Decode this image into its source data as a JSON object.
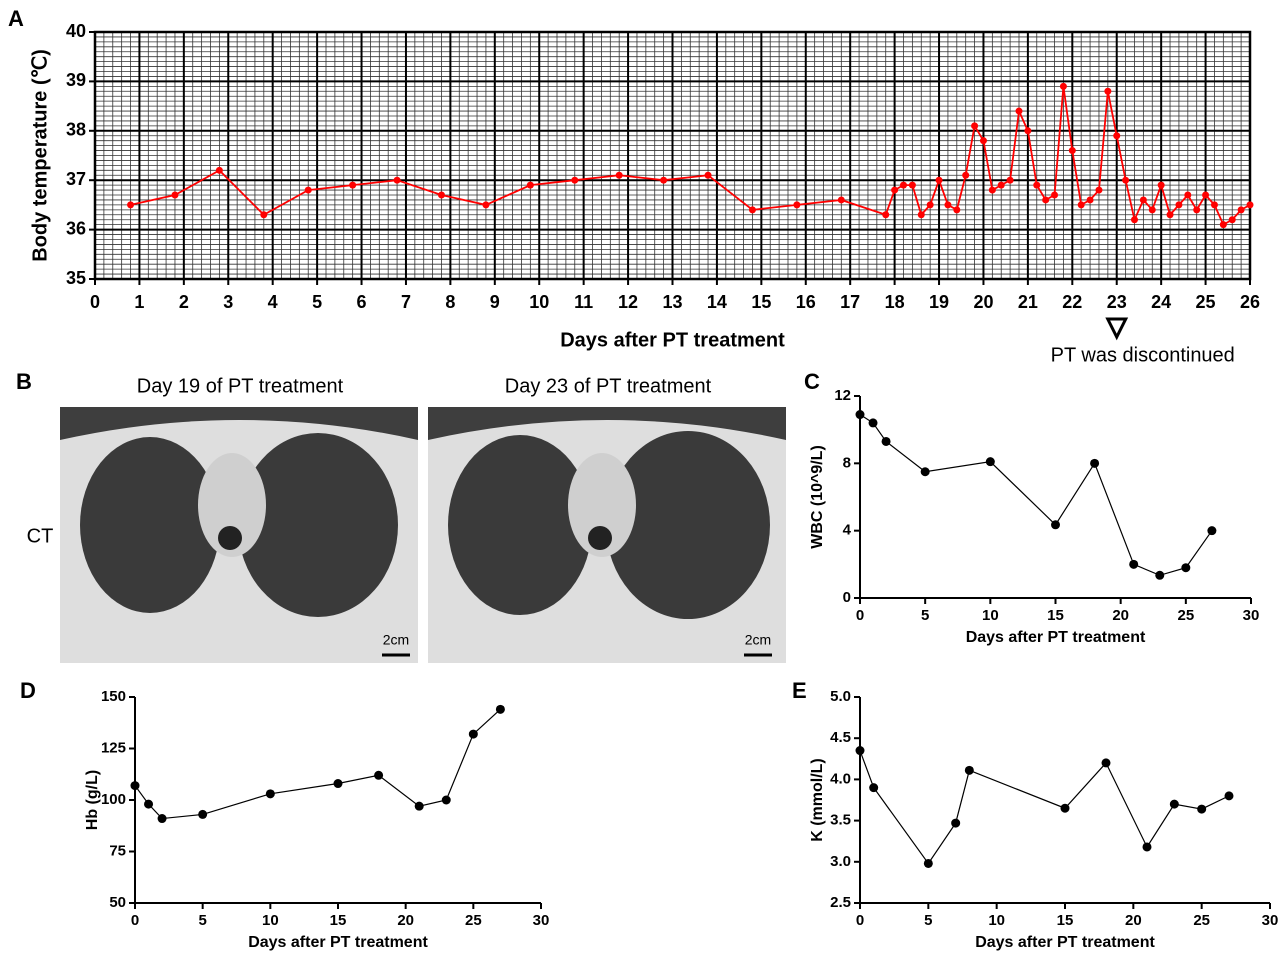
{
  "chart_data": [
    {
      "type": "line",
      "panel": "A",
      "ylabel": "Body temperature (℃)",
      "xlabel": "Days after PT treatment",
      "color": "#ff0000",
      "grid": true,
      "xlim": [
        0,
        26
      ],
      "xticks": [
        0,
        1,
        2,
        3,
        4,
        5,
        6,
        7,
        8,
        9,
        10,
        11,
        12,
        13,
        14,
        15,
        16,
        17,
        18,
        19,
        20,
        21,
        22,
        23,
        24,
        25,
        26
      ],
      "ylim": [
        35,
        40
      ],
      "yticks": [
        35,
        36,
        37,
        38,
        39,
        40
      ],
      "x": [
        0.8,
        1.8,
        2.8,
        3.8,
        4.8,
        5.8,
        6.8,
        7.8,
        8.8,
        9.8,
        10.8,
        11.8,
        12.8,
        13.8,
        14.8,
        15.8,
        16.8,
        17.8,
        18.0,
        18.2,
        18.4,
        18.6,
        18.8,
        19.0,
        19.2,
        19.4,
        19.6,
        19.8,
        20.0,
        20.2,
        20.4,
        20.6,
        20.8,
        21.0,
        21.2,
        21.4,
        21.6,
        21.8,
        22.0,
        22.2,
        22.4,
        22.6,
        22.8,
        23.0,
        23.2,
        23.4,
        23.6,
        23.8,
        24.0,
        24.2,
        24.4,
        24.6,
        24.8,
        25.0,
        25.2,
        25.4,
        25.6,
        25.8,
        26.0
      ],
      "values": [
        36.5,
        36.7,
        37.2,
        36.3,
        36.8,
        36.9,
        37.0,
        36.7,
        36.5,
        36.9,
        37.0,
        37.1,
        37.0,
        37.1,
        36.4,
        36.5,
        36.6,
        36.3,
        36.8,
        36.9,
        36.9,
        36.3,
        36.5,
        37.0,
        36.5,
        36.4,
        37.1,
        38.1,
        37.8,
        36.8,
        36.9,
        37.0,
        38.4,
        38.0,
        36.9,
        36.6,
        36.7,
        38.9,
        37.6,
        36.5,
        36.6,
        36.8,
        38.8,
        37.9,
        37.0,
        36.2,
        36.6,
        36.4,
        36.9,
        36.3,
        36.5,
        36.7,
        36.4,
        36.7,
        36.5,
        36.1,
        36.2,
        36.4,
        36.5
      ],
      "annotation": {
        "text": "PT was discontinued",
        "x": 23
      }
    },
    {
      "type": "line",
      "panel": "C",
      "ylabel": "WBC (10^9/L)",
      "xlabel": "Days after PT treatment",
      "color": "#000000",
      "grid": false,
      "xlim": [
        0,
        30
      ],
      "xticks": [
        0,
        5,
        10,
        15,
        20,
        25,
        30
      ],
      "ylim": [
        0,
        12
      ],
      "yticks": [
        0,
        4,
        8,
        12
      ],
      "x": [
        0,
        1,
        2,
        5,
        10,
        15,
        18,
        21,
        23,
        25,
        27
      ],
      "values": [
        10.9,
        10.4,
        9.3,
        7.5,
        8.1,
        4.35,
        8.0,
        2.0,
        1.35,
        1.8,
        4.0
      ]
    },
    {
      "type": "line",
      "panel": "D",
      "ylabel": "Hb (g/L)",
      "xlabel": "Days after PT treatment",
      "color": "#000000",
      "grid": false,
      "xlim": [
        0,
        30
      ],
      "xticks": [
        0,
        5,
        10,
        15,
        20,
        25,
        30
      ],
      "ylim": [
        50,
        150
      ],
      "yticks": [
        50,
        75,
        100,
        125,
        150
      ],
      "x": [
        0,
        1,
        2,
        5,
        10,
        15,
        18,
        21,
        23,
        25,
        27
      ],
      "values": [
        107,
        98,
        91,
        93,
        103,
        108,
        112,
        97,
        100,
        132,
        144
      ]
    },
    {
      "type": "line",
      "panel": "E",
      "ylabel": "K (mmol/L)",
      "xlabel": "Days after PT treatment",
      "color": "#000000",
      "grid": false,
      "xlim": [
        0,
        30
      ],
      "xticks": [
        0,
        5,
        10,
        15,
        20,
        25,
        30
      ],
      "ylim": [
        2.5,
        5.0
      ],
      "yticks": [
        2.5,
        {
          "value": 3,
          "label": "3.0"
        },
        3.5,
        {
          "value": 4,
          "label": "4.0"
        },
        4.5,
        {
          "value": 5,
          "label": "5.0"
        }
      ],
      "x": [
        0,
        1,
        5,
        7,
        8,
        15,
        18,
        21,
        23,
        25,
        27
      ],
      "values": [
        4.35,
        3.9,
        2.98,
        3.47,
        4.11,
        3.65,
        4.2,
        3.18,
        3.7,
        3.64,
        3.8
      ]
    }
  ],
  "ct_panel": {
    "panel": "B",
    "titles": [
      "Day 19 of PT treatment",
      "Day 23 of PT treatment"
    ],
    "row_label": "CT",
    "scale_labels": [
      "2cm",
      "2cm"
    ]
  }
}
